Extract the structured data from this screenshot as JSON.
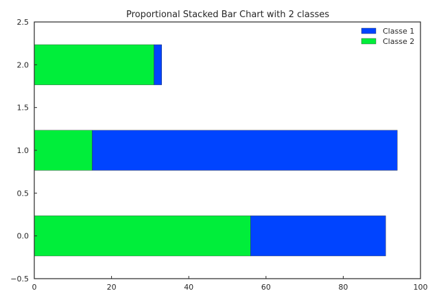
{
  "chart_data": {
    "type": "bar",
    "orientation": "horizontal",
    "stacked": true,
    "title": "Proportional Stacked Bar Chart with 2 classes",
    "xlabel": "",
    "ylabel": "",
    "categories": [
      0,
      1,
      2
    ],
    "series": [
      {
        "name": "Classe 2",
        "values": [
          56,
          15,
          31
        ],
        "color": "#00ee3a"
      },
      {
        "name": "Classe 1",
        "values": [
          35,
          79,
          2
        ],
        "color": "#0044ff"
      }
    ],
    "xlim": [
      0,
      100
    ],
    "ylim": [
      -0.5,
      2.5
    ],
    "xticks": [
      0,
      20,
      40,
      60,
      80,
      100
    ],
    "yticks": [
      -0.5,
      0.0,
      0.5,
      1.0,
      1.5,
      2.0,
      2.5
    ],
    "xtick_labels": [
      "0",
      "20",
      "40",
      "60",
      "80",
      "100"
    ],
    "ytick_labels": [
      "−0.5",
      "0.0",
      "0.5",
      "1.0",
      "1.5",
      "2.0",
      "2.5"
    ],
    "bar_height": 0.45,
    "legend": {
      "position": "top-right",
      "entries": [
        {
          "label": "Classe 1",
          "color": "#0044ff"
        },
        {
          "label": "Classe 2",
          "color": "#00ee3a"
        }
      ]
    },
    "grid": false
  }
}
